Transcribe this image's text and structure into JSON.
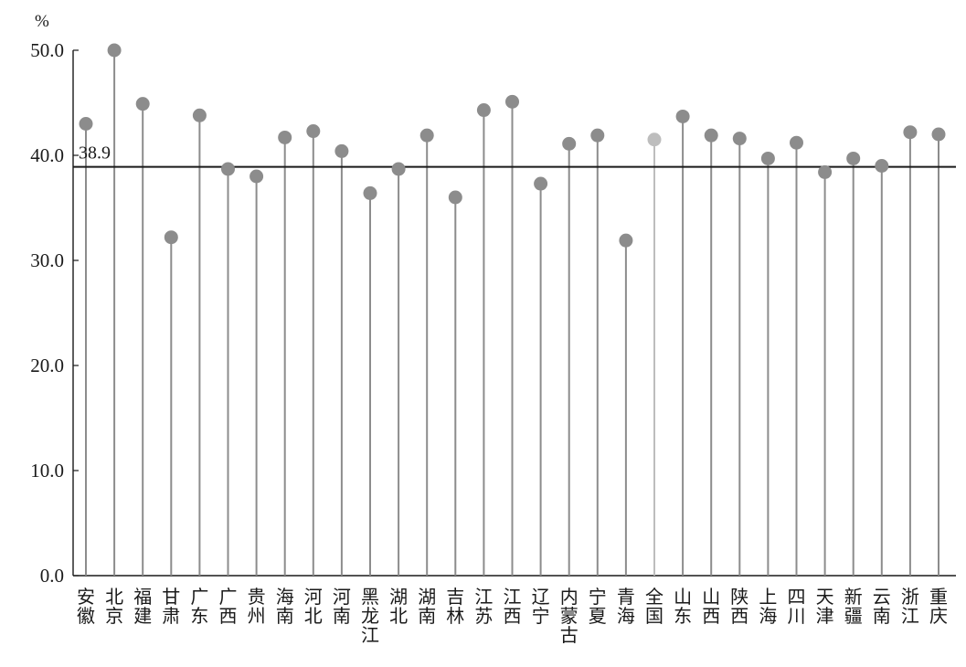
{
  "chart_data": {
    "type": "lollipop",
    "unit_label": "%",
    "ylim": [
      0,
      50
    ],
    "yticks": [
      "0.0",
      "10.0",
      "20.0",
      "30.0",
      "40.0",
      "50.0"
    ],
    "grid": false,
    "legend": "none",
    "reference_line": {
      "value": 38.9,
      "label": "38.9"
    },
    "categories": [
      "安徽",
      "北京",
      "福建",
      "甘肃",
      "广东",
      "广西",
      "贵州",
      "海南",
      "河北",
      "河南",
      "黑龙江",
      "湖北",
      "湖南",
      "吉林",
      "江苏",
      "江西",
      "辽宁",
      "内蒙古",
      "宁夏",
      "青海",
      "全国",
      "山东",
      "山西",
      "陕西",
      "上海",
      "四川",
      "天津",
      "新疆",
      "云南",
      "浙江",
      "重庆"
    ],
    "values": [
      43.0,
      50.0,
      44.9,
      32.2,
      43.8,
      38.7,
      38.0,
      41.7,
      42.3,
      40.4,
      36.4,
      38.7,
      41.9,
      36.0,
      44.3,
      45.1,
      37.3,
      41.1,
      41.9,
      31.9,
      41.5,
      43.7,
      41.9,
      41.6,
      39.7,
      41.2,
      38.4,
      39.7,
      39.0,
      42.2,
      42.0
    ],
    "colors": {
      "default": "#8c8c8c",
      "highlight": "#bdbdbd",
      "highlight_category": "全国",
      "reference_line": "#1a1a1a",
      "axis": "#1a1a1a"
    }
  }
}
